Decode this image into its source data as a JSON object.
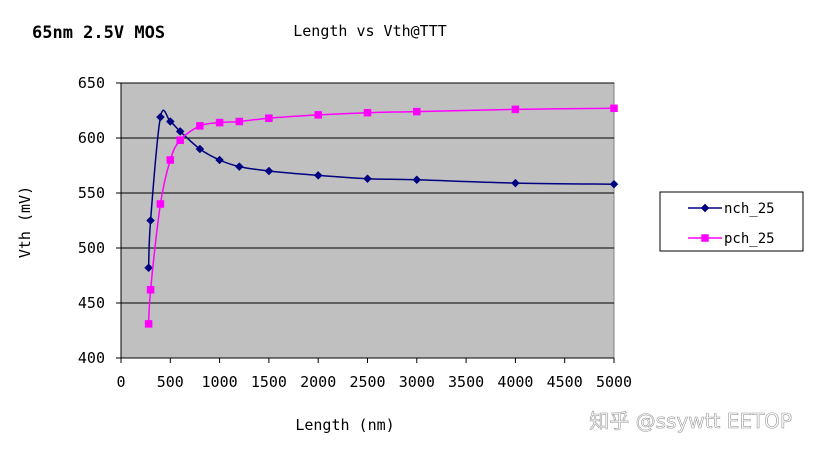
{
  "header": {
    "corner_title": "65nm 2.5V MOS",
    "watermark": "知乎 @ssywtt EETOP"
  },
  "chart_data": {
    "type": "line",
    "title": "Length vs Vth@TTT",
    "xlabel": "Length (nm)",
    "ylabel": "Vth (mV)",
    "xlim": [
      0,
      5000
    ],
    "ylim": [
      400,
      650
    ],
    "xticks": [
      0,
      500,
      1000,
      1500,
      2000,
      2500,
      3000,
      3500,
      4000,
      4500,
      5000
    ],
    "yticks": [
      400,
      450,
      500,
      550,
      600,
      650
    ],
    "grid": "horizontal",
    "legend_position": "right",
    "series": [
      {
        "name": "nch_25",
        "color": "#000080",
        "marker": "diamond",
        "x": [
          280,
          300,
          400,
          500,
          600,
          800,
          1000,
          1200,
          1500,
          2000,
          2500,
          3000,
          4000,
          5000
        ],
        "y": [
          482,
          525,
          619,
          615,
          606,
          590,
          580,
          574,
          570,
          566,
          563,
          562,
          559,
          558
        ]
      },
      {
        "name": "pch_25",
        "color": "#ff00ff",
        "marker": "square",
        "x": [
          280,
          300,
          400,
          500,
          600,
          800,
          1000,
          1200,
          1500,
          2000,
          2500,
          3000,
          4000,
          5000
        ],
        "y": [
          431,
          462,
          540,
          580,
          598,
          611,
          614,
          615,
          618,
          621,
          623,
          624,
          626,
          627
        ]
      }
    ]
  },
  "colors": {
    "plot_background": "#c0c0c0",
    "gridline": "#000000"
  }
}
